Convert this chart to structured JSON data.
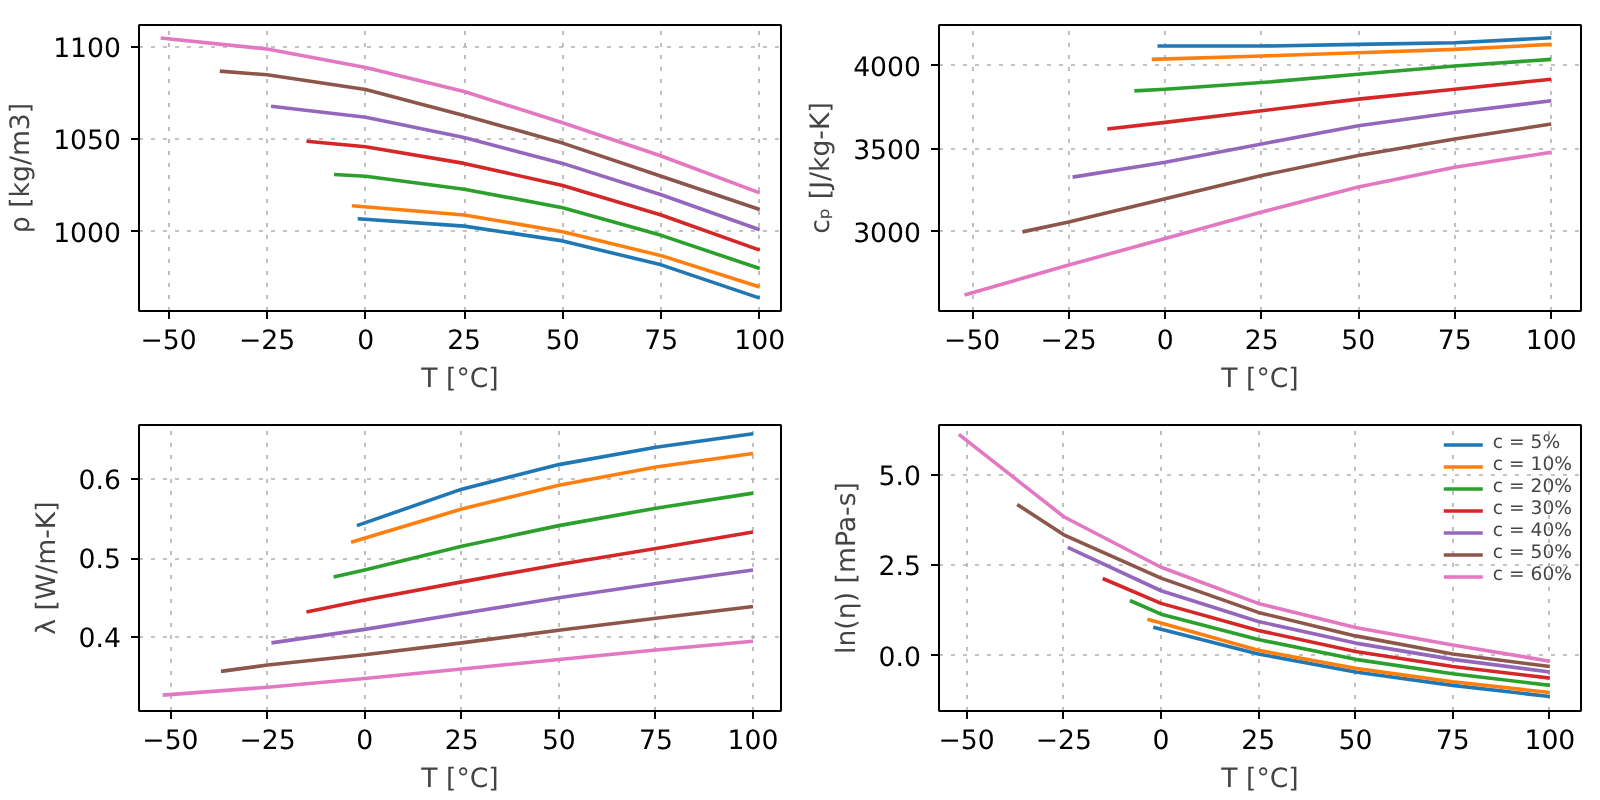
{
  "chart_data": [
    {
      "type": "line",
      "xlabel": "T [°C]",
      "ylabel": "ρ [kg/m3]",
      "xlim": [
        -57.5,
        105.4
      ],
      "ylim": [
        957,
        1112
      ],
      "xticks": [
        -50,
        -25,
        0,
        25,
        50,
        75,
        100
      ],
      "yticks": [
        1000,
        1050,
        1100
      ],
      "grid": true,
      "legend": false,
      "series": [
        {
          "color": "#1f77b4",
          "x": [
            -2,
            25,
            50,
            75,
            100
          ],
          "values": [
            1007,
            1003,
            995,
            982,
            964
          ]
        },
        {
          "color": "#ff7f0e",
          "x": [
            -3.5,
            25,
            50,
            75,
            100
          ],
          "values": [
            1014,
            1009,
            1000,
            987,
            970
          ]
        },
        {
          "color": "#2ca02c",
          "x": [
            -8,
            0,
            25,
            50,
            75,
            100
          ],
          "values": [
            1031,
            1030,
            1023,
            1013,
            998,
            980
          ]
        },
        {
          "color": "#d62728",
          "x": [
            -15,
            0,
            25,
            50,
            75,
            100
          ],
          "values": [
            1049,
            1046,
            1037,
            1025,
            1009,
            990
          ]
        },
        {
          "color": "#9467bd",
          "x": [
            -24,
            0,
            25,
            50,
            75,
            100
          ],
          "values": [
            1068,
            1062,
            1051,
            1037,
            1020,
            1001
          ]
        },
        {
          "color": "#8c564b",
          "x": [
            -37,
            -25,
            0,
            25,
            50,
            75,
            100
          ],
          "values": [
            1087,
            1085,
            1077,
            1063,
            1048,
            1030,
            1012
          ]
        },
        {
          "color": "#e377c2",
          "x": [
            -52,
            -25,
            0,
            25,
            50,
            75,
            100
          ],
          "values": [
            1105,
            1099,
            1089,
            1076,
            1059,
            1041,
            1021
          ]
        }
      ]
    },
    {
      "type": "line",
      "xlabel": "T [°C]",
      "ylabel": "cₚ [J/kg-K]",
      "xlim": [
        -58.6,
        107.7
      ],
      "ylim": [
        2523,
        4247
      ],
      "xticks": [
        -50,
        -25,
        0,
        25,
        50,
        75,
        100
      ],
      "yticks": [
        3000,
        3500,
        4000
      ],
      "grid": true,
      "legend": false,
      "series": [
        {
          "color": "#1f77b4",
          "x": [
            -2,
            25,
            50,
            75,
            100
          ],
          "values": [
            4120,
            4120,
            4130,
            4140,
            4170
          ]
        },
        {
          "color": "#ff7f0e",
          "x": [
            -3.5,
            25,
            50,
            75,
            100
          ],
          "values": [
            4040,
            4060,
            4080,
            4100,
            4130
          ]
        },
        {
          "color": "#2ca02c",
          "x": [
            -8,
            0,
            25,
            50,
            75,
            100
          ],
          "values": [
            3850,
            3860,
            3900,
            3950,
            4000,
            4040
          ]
        },
        {
          "color": "#d62728",
          "x": [
            -15,
            0,
            25,
            50,
            75,
            100
          ],
          "values": [
            3620,
            3660,
            3730,
            3800,
            3860,
            3920
          ]
        },
        {
          "color": "#9467bd",
          "x": [
            -24,
            0,
            25,
            50,
            75,
            100
          ],
          "values": [
            3330,
            3420,
            3530,
            3640,
            3720,
            3790
          ]
        },
        {
          "color": "#8c564b",
          "x": [
            -37,
            -25,
            0,
            25,
            50,
            75,
            100
          ],
          "values": [
            3000,
            3060,
            3200,
            3340,
            3460,
            3560,
            3650
          ]
        },
        {
          "color": "#e377c2",
          "x": [
            -52,
            -25,
            0,
            25,
            50,
            75,
            100
          ],
          "values": [
            2620,
            2800,
            2960,
            3120,
            3270,
            3390,
            3480
          ]
        }
      ]
    },
    {
      "type": "line",
      "xlabel": "T [°C]",
      "ylabel": "λ [W/m-K]",
      "xlim": [
        -58.1,
        107.2
      ],
      "ylim": [
        0.307,
        0.668
      ],
      "xticks": [
        -50,
        -25,
        0,
        25,
        50,
        75,
        100
      ],
      "yticks": [
        0.4,
        0.5,
        0.6
      ],
      "grid": true,
      "legend": false,
      "series": [
        {
          "color": "#1f77b4",
          "x": [
            -2,
            25,
            50,
            75,
            100
          ],
          "values": [
            0.541,
            0.587,
            0.618,
            0.64,
            0.657
          ]
        },
        {
          "color": "#ff7f0e",
          "x": [
            -3.5,
            25,
            50,
            75,
            100
          ],
          "values": [
            0.52,
            0.562,
            0.592,
            0.615,
            0.632
          ]
        },
        {
          "color": "#2ca02c",
          "x": [
            -8,
            0,
            25,
            50,
            75,
            100
          ],
          "values": [
            0.476,
            0.485,
            0.515,
            0.541,
            0.563,
            0.582
          ]
        },
        {
          "color": "#d62728",
          "x": [
            -15,
            0,
            25,
            50,
            75,
            100
          ],
          "values": [
            0.432,
            0.447,
            0.47,
            0.492,
            0.512,
            0.533
          ]
        },
        {
          "color": "#9467bd",
          "x": [
            -24,
            0,
            25,
            50,
            75,
            100
          ],
          "values": [
            0.393,
            0.41,
            0.43,
            0.45,
            0.468,
            0.485
          ]
        },
        {
          "color": "#8c564b",
          "x": [
            -37,
            -25,
            0,
            25,
            50,
            75,
            100
          ],
          "values": [
            0.357,
            0.365,
            0.378,
            0.393,
            0.409,
            0.424,
            0.439
          ]
        },
        {
          "color": "#e377c2",
          "x": [
            -52,
            -25,
            0,
            25,
            50,
            75,
            100
          ],
          "values": [
            0.327,
            0.337,
            0.348,
            0.36,
            0.372,
            0.384,
            0.395
          ]
        }
      ]
    },
    {
      "type": "line",
      "xlabel": "T [°C]",
      "ylabel": "ln(η) [mPa-s]",
      "xlim": [
        -57.1,
        108.0
      ],
      "ylim": [
        -1.53,
        6.39
      ],
      "xticks": [
        -50,
        -25,
        0,
        25,
        50,
        75,
        100
      ],
      "yticks": [
        {
          "value": 0,
          "label": "0.0"
        },
        2.5,
        {
          "value": 5,
          "label": "5.0"
        }
      ],
      "grid": true,
      "legend": "top right",
      "series": [
        {
          "name": "c = 5%",
          "color": "#1f77b4",
          "x": [
            -2,
            25,
            50,
            75,
            100
          ],
          "values": [
            0.79,
            0.05,
            -0.45,
            -0.82,
            -1.13
          ]
        },
        {
          "name": "c = 10%",
          "color": "#ff7f0e",
          "x": [
            -3.5,
            25,
            50,
            75,
            100
          ],
          "values": [
            1.01,
            0.15,
            -0.35,
            -0.72,
            -1.02
          ]
        },
        {
          "name": "c = 20%",
          "color": "#2ca02c",
          "x": [
            -8,
            0,
            25,
            50,
            75,
            100
          ],
          "values": [
            1.53,
            1.15,
            0.45,
            -0.1,
            -0.5,
            -0.82
          ]
        },
        {
          "name": "c = 30%",
          "color": "#d62728",
          "x": [
            -15,
            0,
            25,
            50,
            75,
            100
          ],
          "values": [
            2.14,
            1.45,
            0.7,
            0.12,
            -0.3,
            -0.62
          ]
        },
        {
          "name": "c = 40%",
          "color": "#9467bd",
          "x": [
            -24,
            0,
            25,
            50,
            75,
            100
          ],
          "values": [
            3.0,
            1.8,
            0.95,
            0.35,
            -0.1,
            -0.45
          ]
        },
        {
          "name": "c = 50%",
          "color": "#8c564b",
          "x": [
            -37,
            -25,
            0,
            25,
            50,
            75,
            100
          ],
          "values": [
            4.19,
            3.35,
            2.15,
            1.2,
            0.55,
            0.05,
            -0.3
          ]
        },
        {
          "name": "c = 60%",
          "color": "#e377c2",
          "x": [
            -52,
            -25,
            0,
            25,
            50,
            75,
            100
          ],
          "values": [
            6.13,
            3.85,
            2.45,
            1.45,
            0.78,
            0.3,
            -0.15
          ]
        }
      ]
    }
  ]
}
